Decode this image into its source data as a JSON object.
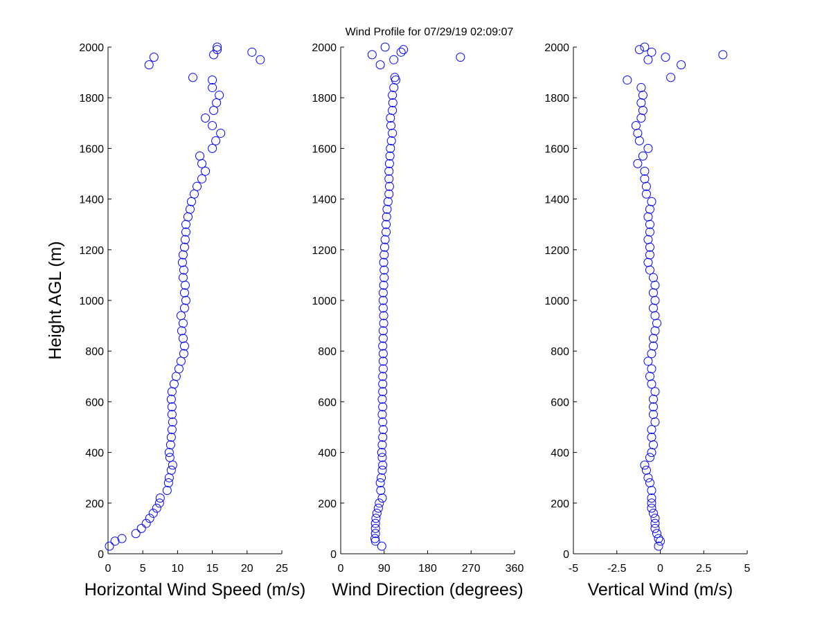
{
  "chart_data": [
    {
      "type": "scatter",
      "title": "Wind Profile for  07/29/19 02:09:07",
      "xlabel": "Horizontal Wind Speed (m/s)",
      "ylabel": "Height AGL (m)",
      "color": "#0000ff",
      "xlim": [
        0,
        25
      ],
      "xticks": [
        0,
        5,
        10,
        15,
        20,
        25
      ],
      "ylim": [
        0,
        2000
      ],
      "yticks": [
        0,
        200,
        400,
        600,
        800,
        1000,
        1200,
        1400,
        1600,
        1800,
        2000
      ],
      "x": [
        0.2,
        1,
        2,
        4,
        4.8,
        5.5,
        6,
        6.5,
        7,
        7.4,
        7.5,
        8.5,
        8.7,
        8.8,
        9.1,
        9.3,
        8.9,
        8.8,
        9,
        9.1,
        9.2,
        9.3,
        9.2,
        9.2,
        9.1,
        9.2,
        9.5,
        9.8,
        10.2,
        10.5,
        10.9,
        11,
        10.8,
        10.6,
        10.8,
        10.5,
        11,
        11.2,
        11,
        11.1,
        10.8,
        10.9,
        10.7,
        10.8,
        11,
        11.1,
        11.2,
        11.2,
        11.5,
        11.8,
        12,
        12.4,
        12.8,
        13.5,
        14,
        13.5,
        13.2,
        15,
        15.5,
        16.2,
        15,
        14,
        15.2,
        15.6,
        16,
        15,
        15,
        12.2,
        5.9,
        21.9,
        6.6,
        15.2,
        20.7,
        15.7,
        15.7
      ],
      "y": [
        30,
        50,
        60,
        80,
        100,
        120,
        140,
        160,
        180,
        200,
        220,
        250,
        280,
        300,
        330,
        350,
        380,
        400,
        430,
        460,
        490,
        520,
        550,
        580,
        610,
        640,
        670,
        700,
        730,
        760,
        790,
        820,
        850,
        880,
        910,
        940,
        970,
        1000,
        1030,
        1060,
        1090,
        1120,
        1150,
        1180,
        1210,
        1240,
        1270,
        1300,
        1330,
        1360,
        1390,
        1420,
        1450,
        1480,
        1510,
        1540,
        1570,
        1600,
        1630,
        1660,
        1690,
        1720,
        1750,
        1780,
        1810,
        1840,
        1870,
        1880,
        1930,
        1950,
        1960,
        1970,
        1980,
        1990,
        2000
      ]
    },
    {
      "type": "scatter",
      "xlabel": "Wind Direction (degrees)",
      "color": "#0000ff",
      "xlim": [
        0,
        360
      ],
      "xticks": [
        0,
        90,
        180,
        270,
        360
      ],
      "ylim": [
        0,
        2000
      ],
      "yticks": [
        0,
        200,
        400,
        600,
        800,
        1000,
        1200,
        1400,
        1600,
        1800,
        2000
      ],
      "x": [
        85,
        72,
        71,
        72,
        72,
        72,
        73,
        75,
        78,
        80,
        86,
        83,
        82,
        84,
        86,
        87,
        86,
        85,
        86,
        87,
        88,
        87,
        86,
        87,
        86,
        87,
        87,
        87,
        88,
        88,
        88,
        87,
        88,
        88,
        89,
        89,
        88,
        88,
        88,
        89,
        90,
        90,
        89,
        90,
        91,
        92,
        94,
        94,
        95,
        96,
        98,
        100,
        101,
        100,
        100,
        101,
        102,
        103,
        105,
        107,
        104,
        103,
        107,
        108,
        107,
        110,
        114,
        112,
        82,
        110,
        248,
        65,
        125,
        130,
        92
      ],
      "y": [
        30,
        50,
        60,
        80,
        100,
        120,
        140,
        160,
        180,
        200,
        220,
        250,
        280,
        300,
        330,
        350,
        380,
        400,
        430,
        460,
        490,
        520,
        550,
        580,
        610,
        640,
        670,
        700,
        730,
        760,
        790,
        820,
        850,
        880,
        910,
        940,
        970,
        1000,
        1030,
        1060,
        1090,
        1120,
        1150,
        1180,
        1210,
        1240,
        1270,
        1300,
        1330,
        1360,
        1390,
        1420,
        1450,
        1480,
        1510,
        1540,
        1570,
        1600,
        1630,
        1660,
        1690,
        1720,
        1750,
        1780,
        1810,
        1840,
        1870,
        1880,
        1930,
        1950,
        1960,
        1970,
        1980,
        1990,
        2000
      ]
    },
    {
      "type": "scatter",
      "xlabel": "Vertical Wind (m/s)",
      "color": "#0000ff",
      "xlim": [
        -5,
        5
      ],
      "xticks": [
        -5,
        -2.5,
        0,
        2.5,
        5
      ],
      "ylim": [
        0,
        2000
      ],
      "yticks": [
        0,
        200,
        400,
        600,
        800,
        1000,
        1200,
        1400,
        1600,
        1800,
        2000
      ],
      "x": [
        -0.1,
        0,
        -0.1,
        -0.2,
        -0.3,
        -0.3,
        -0.3,
        -0.4,
        -0.5,
        -0.5,
        -0.5,
        -0.5,
        -0.6,
        -0.7,
        -0.8,
        -0.9,
        -0.6,
        -0.5,
        -0.4,
        -0.5,
        -0.5,
        -0.3,
        -0.4,
        -0.4,
        -0.4,
        -0.3,
        -0.5,
        -0.6,
        -0.5,
        -0.7,
        -0.5,
        -0.4,
        -0.4,
        -0.3,
        -0.2,
        -0.3,
        -0.4,
        -0.3,
        -0.4,
        -0.3,
        -0.4,
        -0.6,
        -0.7,
        -0.6,
        -0.6,
        -0.7,
        -0.6,
        -0.6,
        -0.7,
        -0.6,
        -0.5,
        -0.8,
        -0.8,
        -0.9,
        -0.9,
        -1.3,
        -1,
        -0.7,
        -1.2,
        -1.3,
        -1.4,
        -1.1,
        -1,
        -1.1,
        -1,
        -1.1,
        -1.9,
        0.6,
        1.2,
        -0.7,
        0.3,
        3.6,
        -0.5,
        -1.2,
        -0.9
      ],
      "y": [
        30,
        50,
        60,
        80,
        100,
        120,
        140,
        160,
        180,
        200,
        220,
        250,
        280,
        300,
        330,
        350,
        380,
        400,
        430,
        460,
        490,
        520,
        550,
        580,
        610,
        640,
        670,
        700,
        730,
        760,
        790,
        820,
        850,
        880,
        910,
        940,
        970,
        1000,
        1030,
        1060,
        1090,
        1120,
        1150,
        1180,
        1210,
        1240,
        1270,
        1300,
        1330,
        1360,
        1390,
        1420,
        1450,
        1480,
        1510,
        1540,
        1570,
        1600,
        1630,
        1660,
        1690,
        1720,
        1750,
        1780,
        1810,
        1840,
        1870,
        1880,
        1930,
        1950,
        1960,
        1970,
        1980,
        1990,
        2000
      ]
    }
  ]
}
